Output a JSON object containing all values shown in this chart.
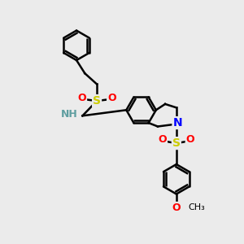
{
  "background_color": "#ebebeb",
  "bond_color": "#000000",
  "bond_width": 1.8,
  "atom_colors": {
    "S": "#cccc00",
    "O": "#ff0000",
    "N": "#0000ff",
    "H": "#5f9ea0",
    "C": "#000000"
  },
  "font_size_atom": 8,
  "figsize": [
    3.0,
    3.0
  ],
  "dpi": 100,
  "xlim": [
    0,
    10
  ],
  "ylim": [
    0,
    10
  ]
}
